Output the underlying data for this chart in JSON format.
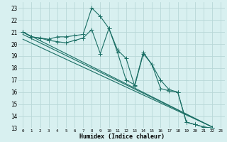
{
  "xlabel": "Humidex (Indice chaleur)",
  "background_color": "#d8f0f0",
  "grid_color": "#b8d8d8",
  "line_color": "#1a6e64",
  "xlim": [
    -0.5,
    23.5
  ],
  "ylim": [
    13,
    23.5
  ],
  "xticks": [
    0,
    1,
    2,
    3,
    4,
    5,
    6,
    7,
    8,
    9,
    10,
    11,
    12,
    13,
    14,
    15,
    16,
    17,
    18,
    19,
    20,
    21,
    22,
    23
  ],
  "yticks": [
    13,
    14,
    15,
    16,
    17,
    18,
    19,
    20,
    21,
    22,
    23
  ],
  "jagged1_x": [
    0,
    1,
    2,
    3,
    4,
    5,
    6,
    7,
    8,
    9,
    10,
    11,
    12,
    13,
    14,
    15,
    16,
    17,
    18,
    19,
    20,
    21,
    22
  ],
  "jagged1_y": [
    21.0,
    20.6,
    20.5,
    20.4,
    20.6,
    20.6,
    20.7,
    20.8,
    23.0,
    22.3,
    21.3,
    19.5,
    18.8,
    16.5,
    19.2,
    18.3,
    17.0,
    16.2,
    16.0,
    13.5,
    13.3,
    13.1,
    13.0
  ],
  "jagged2_x": [
    0,
    1,
    2,
    3,
    4,
    5,
    6,
    7,
    8,
    9,
    10,
    11,
    12,
    13,
    14,
    15,
    16,
    17,
    18,
    19,
    20,
    21,
    22
  ],
  "jagged2_y": [
    21.0,
    20.6,
    20.5,
    20.3,
    20.2,
    20.1,
    20.3,
    20.5,
    21.2,
    19.2,
    21.3,
    19.3,
    17.0,
    16.6,
    19.3,
    18.3,
    16.3,
    16.1,
    16.0,
    13.5,
    13.3,
    13.1,
    13.0
  ],
  "trend1_x": [
    0,
    22
  ],
  "trend1_y": [
    21.0,
    13.1
  ],
  "trend2_x": [
    0,
    22
  ],
  "trend2_y": [
    21.0,
    13.1
  ],
  "trend3_x": [
    0,
    22
  ],
  "trend3_y": [
    20.5,
    13.1
  ]
}
